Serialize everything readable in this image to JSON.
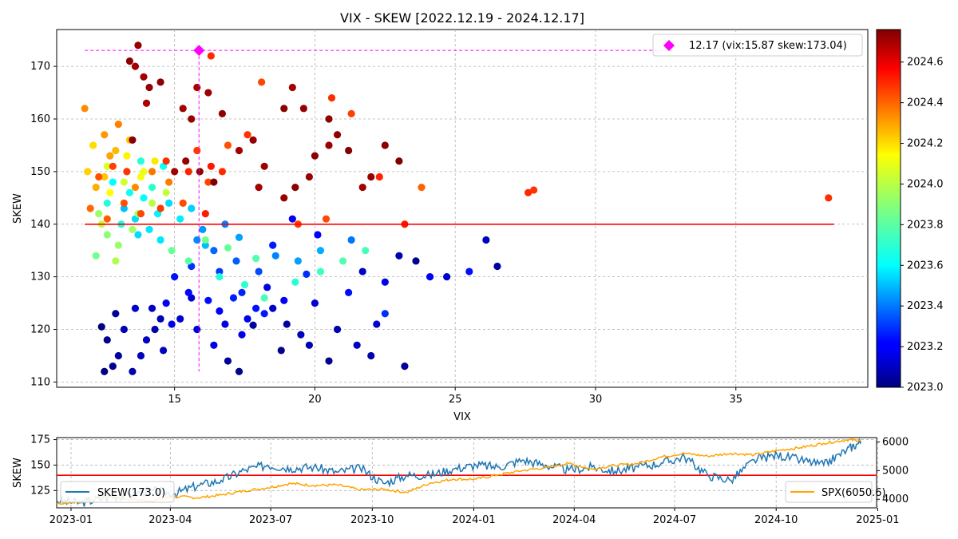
{
  "chart_data": [
    {
      "type": "scatter",
      "title": "VIX - SKEW [2022.12.19 - 2024.12.17]",
      "xlabel": "VIX",
      "ylabel": "SKEW",
      "xlim": [
        10.8,
        39.7
      ],
      "ylim": [
        109,
        177
      ],
      "xticks": [
        15,
        20,
        25,
        30,
        35
      ],
      "yticks": [
        110,
        120,
        130,
        140,
        150,
        160,
        170
      ],
      "grid": true,
      "colormap": "jet",
      "colorbar": {
        "range": [
          2023.0,
          2024.76
        ],
        "ticks": [
          "2023.0",
          "2023.2",
          "2023.4",
          "2023.6",
          "2023.8",
          "2024.0",
          "2024.2",
          "2024.4",
          "2024.6"
        ]
      },
      "mean_line": {
        "y": 140,
        "x_start": 11.8,
        "x_end": 38.5,
        "color": "#ff0000"
      },
      "highlight": {
        "label": "12.17 (vix:15.87 skew:173.04)",
        "x": 15.87,
        "y": 173.04,
        "color": "#ff00ff",
        "vline_ymin": 112,
        "hline_xmax": 32.5
      },
      "legend_position": "top-right",
      "points": [
        [
          12.4,
          120.5,
          2023.0
        ],
        [
          12.6,
          118,
          2023.02
        ],
        [
          13.0,
          115,
          2023.05
        ],
        [
          12.8,
          113,
          2023.03
        ],
        [
          12.5,
          112,
          2023.0
        ],
        [
          13.5,
          112,
          2023.07
        ],
        [
          13.8,
          115,
          2023.1
        ],
        [
          14.0,
          118,
          2023.12
        ],
        [
          14.3,
          120,
          2023.08
        ],
        [
          14.5,
          122,
          2023.1
        ],
        [
          14.2,
          124,
          2023.12
        ],
        [
          13.6,
          124,
          2023.13
        ],
        [
          15.8,
          120,
          2023.15
        ],
        [
          16.4,
          117,
          2023.17
        ],
        [
          15.2,
          122,
          2023.14
        ],
        [
          16.8,
          121,
          2023.16
        ],
        [
          17.4,
          119,
          2023.18
        ],
        [
          17.6,
          122,
          2023.2
        ],
        [
          13.2,
          120,
          2023.09
        ],
        [
          12.9,
          123,
          2023.04
        ],
        [
          14.6,
          116,
          2023.11
        ],
        [
          15.6,
          126,
          2023.15
        ],
        [
          14.7,
          125,
          2023.2
        ],
        [
          16.6,
          123.5,
          2023.22
        ],
        [
          17.9,
          124,
          2023.25
        ],
        [
          17.1,
          126,
          2023.27
        ],
        [
          16.2,
          125.5,
          2023.24
        ],
        [
          15.5,
          127,
          2023.23
        ],
        [
          14.9,
          121,
          2023.19
        ],
        [
          18.2,
          123,
          2023.26
        ],
        [
          19.0,
          121,
          2023.06
        ],
        [
          18.5,
          124,
          2023.12
        ],
        [
          20.0,
          125,
          2023.15
        ],
        [
          21.2,
          127,
          2023.24
        ],
        [
          22.5,
          123,
          2023.3
        ],
        [
          18.9,
          125.5,
          2023.21
        ],
        [
          17.8,
          120.8,
          2023.05
        ],
        [
          19.5,
          119,
          2023.1
        ],
        [
          20.8,
          120,
          2023.08
        ],
        [
          21.5,
          117,
          2023.11
        ],
        [
          22.2,
          121,
          2023.14
        ],
        [
          23.2,
          113,
          2023.05
        ],
        [
          22.0,
          115,
          2023.07
        ],
        [
          20.5,
          114,
          2023.03
        ],
        [
          19.8,
          117,
          2023.09
        ],
        [
          18.8,
          116,
          2023.02
        ],
        [
          16.9,
          114,
          2023.04
        ],
        [
          17.3,
          112,
          2023.02
        ],
        [
          15.0,
          130,
          2023.25
        ],
        [
          15.6,
          132,
          2023.3
        ],
        [
          16.6,
          131,
          2023.32
        ],
        [
          17.2,
          133,
          2023.38
        ],
        [
          18.0,
          131,
          2023.35
        ],
        [
          18.6,
          134,
          2023.45
        ],
        [
          19.4,
          133,
          2023.5
        ],
        [
          20.2,
          135,
          2023.52
        ],
        [
          21.3,
          137,
          2023.42
        ],
        [
          19.7,
          130.5,
          2023.3
        ],
        [
          18.3,
          128,
          2023.18
        ],
        [
          17.4,
          127,
          2023.28
        ],
        [
          16.4,
          135,
          2023.4
        ],
        [
          15.8,
          137,
          2023.46
        ],
        [
          16.0,
          139,
          2023.48
        ],
        [
          16.8,
          140,
          2023.44
        ],
        [
          17.3,
          137.5,
          2023.5
        ],
        [
          16.1,
          136,
          2023.55
        ],
        [
          13.2,
          143,
          2023.55
        ],
        [
          13.6,
          141,
          2023.6
        ],
        [
          14.1,
          139,
          2023.62
        ],
        [
          14.4,
          142,
          2023.64
        ],
        [
          13.9,
          145,
          2023.66
        ],
        [
          13.4,
          146,
          2023.68
        ],
        [
          14.8,
          144,
          2023.6
        ],
        [
          15.2,
          141,
          2023.63
        ],
        [
          15.6,
          143,
          2023.58
        ],
        [
          13.7,
          138,
          2023.6
        ],
        [
          14.5,
          137,
          2023.62
        ],
        [
          13.1,
          140,
          2023.7
        ],
        [
          12.8,
          148,
          2023.66
        ],
        [
          13.3,
          150,
          2023.7
        ],
        [
          13.8,
          152,
          2023.72
        ],
        [
          14.6,
          151,
          2023.68
        ],
        [
          12.6,
          144,
          2023.72
        ],
        [
          14.2,
          147,
          2023.74
        ],
        [
          16.6,
          130,
          2023.72
        ],
        [
          17.5,
          128.5,
          2023.75
        ],
        [
          18.2,
          126,
          2023.78
        ],
        [
          19.3,
          129,
          2023.73
        ],
        [
          20.2,
          131,
          2023.76
        ],
        [
          21.0,
          133,
          2023.8
        ],
        [
          21.8,
          135,
          2023.78
        ],
        [
          17.9,
          133.5,
          2023.8
        ],
        [
          16.9,
          135.5,
          2023.84
        ],
        [
          16.1,
          137,
          2023.86
        ],
        [
          15.5,
          133,
          2023.82
        ],
        [
          14.9,
          135,
          2023.84
        ],
        [
          12.2,
          134,
          2023.86
        ],
        [
          12.6,
          138,
          2023.9
        ],
        [
          13.0,
          136,
          2023.92
        ],
        [
          13.5,
          139,
          2023.94
        ],
        [
          12.9,
          133,
          2023.96
        ],
        [
          12.4,
          140,
          2023.98
        ],
        [
          13.7,
          142,
          2023.95
        ],
        [
          14.2,
          144,
          2023.98
        ],
        [
          14.7,
          146,
          2024.0
        ],
        [
          13.2,
          148,
          2024.02
        ],
        [
          12.6,
          151,
          2024.04
        ],
        [
          13.9,
          150,
          2024.06
        ],
        [
          12.3,
          142,
          2023.92
        ],
        [
          12.7,
          146,
          2024.1
        ],
        [
          13.3,
          153,
          2024.12
        ],
        [
          13.8,
          149,
          2024.08
        ],
        [
          14.3,
          152,
          2024.14
        ],
        [
          12.1,
          155,
          2024.16
        ],
        [
          11.9,
          150,
          2024.18
        ],
        [
          12.5,
          149,
          2024.2
        ],
        [
          12.9,
          154,
          2024.22
        ],
        [
          13.4,
          156,
          2024.2
        ],
        [
          12.2,
          147,
          2024.24
        ],
        [
          12.7,
          153,
          2024.26
        ],
        [
          11.8,
          162,
          2024.3
        ],
        [
          12.5,
          157,
          2024.28
        ],
        [
          13.0,
          159,
          2024.32
        ],
        [
          13.6,
          147,
          2024.3
        ],
        [
          14.2,
          150,
          2024.34
        ],
        [
          14.8,
          148,
          2024.33
        ],
        [
          12.0,
          143,
          2024.36
        ],
        [
          12.6,
          141,
          2024.38
        ],
        [
          13.2,
          144,
          2024.4
        ],
        [
          13.8,
          142,
          2024.42
        ],
        [
          14.5,
          143,
          2024.44
        ],
        [
          15.3,
          144,
          2024.41
        ],
        [
          12.3,
          149,
          2024.4
        ],
        [
          12.8,
          151,
          2024.43
        ],
        [
          13.3,
          150,
          2024.45
        ],
        [
          14.7,
          152,
          2024.46
        ],
        [
          15.5,
          150,
          2024.48
        ],
        [
          16.3,
          151,
          2024.5
        ],
        [
          15.8,
          154,
          2024.44
        ],
        [
          16.2,
          148,
          2024.42
        ],
        [
          16.7,
          150,
          2024.47
        ],
        [
          16.9,
          155,
          2024.4
        ],
        [
          17.6,
          157,
          2024.45
        ],
        [
          18.1,
          167,
          2024.42
        ],
        [
          19.4,
          140,
          2024.44
        ],
        [
          20.4,
          141,
          2024.41
        ],
        [
          20.6,
          164,
          2024.46
        ],
        [
          21.3,
          161,
          2024.43
        ],
        [
          22.3,
          149,
          2024.48
        ],
        [
          23.2,
          140,
          2024.5
        ],
        [
          23.8,
          147,
          2024.37
        ],
        [
          27.6,
          146,
          2024.47
        ],
        [
          27.8,
          146.5,
          2024.45
        ],
        [
          38.3,
          145,
          2024.46
        ],
        [
          16.3,
          172,
          2024.47
        ],
        [
          16.1,
          142,
          2024.49
        ],
        [
          13.6,
          170,
          2024.7
        ],
        [
          13.7,
          174,
          2024.72
        ],
        [
          13.4,
          171,
          2024.74
        ],
        [
          13.9,
          168,
          2024.7
        ],
        [
          14.1,
          166,
          2024.72
        ],
        [
          14.5,
          167,
          2024.74
        ],
        [
          14.0,
          163,
          2024.68
        ],
        [
          15.3,
          162,
          2024.7
        ],
        [
          15.6,
          160,
          2024.72
        ],
        [
          15.8,
          166,
          2024.69
        ],
        [
          16.2,
          165,
          2024.71
        ],
        [
          16.7,
          161,
          2024.73
        ],
        [
          15.0,
          150,
          2024.7
        ],
        [
          15.4,
          152,
          2024.72
        ],
        [
          15.9,
          150,
          2024.74
        ],
        [
          16.4,
          148,
          2024.76
        ],
        [
          17.3,
          154,
          2024.7
        ],
        [
          17.8,
          156,
          2024.73
        ],
        [
          18.2,
          151,
          2024.71
        ],
        [
          18.9,
          162,
          2024.74
        ],
        [
          19.2,
          166,
          2024.7
        ],
        [
          19.6,
          162,
          2024.72
        ],
        [
          20.0,
          153,
          2024.74
        ],
        [
          20.5,
          155,
          2024.71
        ],
        [
          20.8,
          157,
          2024.73
        ],
        [
          21.2,
          154,
          2024.75
        ],
        [
          21.7,
          147,
          2024.7
        ],
        [
          22.0,
          149,
          2024.72
        ],
        [
          22.5,
          155,
          2024.74
        ],
        [
          23.0,
          152,
          2024.76
        ],
        [
          18.0,
          147,
          2024.7
        ],
        [
          18.9,
          145,
          2024.72
        ],
        [
          19.3,
          147,
          2024.74
        ],
        [
          19.8,
          149,
          2024.71
        ],
        [
          20.5,
          160,
          2024.73
        ],
        [
          13.5,
          156,
          2024.75
        ],
        [
          25.5,
          131,
          2023.24
        ],
        [
          24.1,
          130,
          2023.2
        ],
        [
          26.1,
          137,
          2023.1
        ],
        [
          26.5,
          132,
          2023.06
        ],
        [
          23.0,
          134,
          2023.08
        ],
        [
          21.7,
          131,
          2023.12
        ],
        [
          24.7,
          130,
          2023.14
        ],
        [
          23.6,
          133,
          2023.03
        ],
        [
          22.5,
          129,
          2023.18
        ],
        [
          20.1,
          138,
          2023.22
        ],
        [
          19.2,
          141,
          2023.2
        ],
        [
          18.5,
          136,
          2023.26
        ]
      ]
    },
    {
      "type": "line",
      "ylabel": "SKEW",
      "ylim": [
        108,
        177
      ],
      "yticks": [
        125,
        150,
        175
      ],
      "y2lim": [
        3700,
        6150
      ],
      "y2ticks": [
        4000,
        5000,
        6000
      ],
      "xlim": [
        "2022-12-19",
        "2024-12-31"
      ],
      "xticks": [
        "2023-01",
        "2023-04",
        "2023-07",
        "2023-10",
        "2024-01",
        "2024-04",
        "2024-07",
        "2024-10",
        "2025-01"
      ],
      "grid": true,
      "mean_line": {
        "y": 140,
        "color": "#ff0000"
      },
      "series": [
        {
          "name": "SKEW(173.0)",
          "axis": "left",
          "color": "#1f77b4",
          "x": [
            "2022-12-19",
            "2023-01-10",
            "2023-02-01",
            "2023-02-22",
            "2023-03-15",
            "2023-04-05",
            "2023-04-26",
            "2023-05-17",
            "2023-06-07",
            "2023-06-28",
            "2023-07-19",
            "2023-08-09",
            "2023-08-30",
            "2023-09-20",
            "2023-10-11",
            "2023-11-01",
            "2023-11-22",
            "2023-12-13",
            "2024-01-03",
            "2024-01-24",
            "2024-02-14",
            "2024-03-06",
            "2024-03-27",
            "2024-04-17",
            "2024-05-08",
            "2024-05-29",
            "2024-06-19",
            "2024-07-10",
            "2024-07-31",
            "2024-08-21",
            "2024-09-11",
            "2024-10-02",
            "2024-10-23",
            "2024-11-13",
            "2024-12-04",
            "2024-12-17"
          ],
          "values": [
            115,
            113,
            118,
            121,
            125,
            122,
            130,
            135,
            145,
            150,
            147,
            148,
            143,
            147,
            132,
            140,
            140,
            146,
            150,
            148,
            155,
            150,
            145,
            148,
            144,
            148,
            152,
            158,
            140,
            135,
            155,
            160,
            155,
            150,
            165,
            173
          ]
        },
        {
          "name": "SPX(6050.6)",
          "axis": "right",
          "color": "#ffa500",
          "x": [
            "2022-12-19",
            "2023-01-10",
            "2023-02-01",
            "2023-02-22",
            "2023-03-15",
            "2023-04-05",
            "2023-04-26",
            "2023-05-17",
            "2023-06-07",
            "2023-06-28",
            "2023-07-19",
            "2023-08-09",
            "2023-08-30",
            "2023-09-20",
            "2023-10-11",
            "2023-11-01",
            "2023-11-22",
            "2023-12-13",
            "2024-01-03",
            "2024-01-24",
            "2024-02-14",
            "2024-03-06",
            "2024-03-27",
            "2024-04-17",
            "2024-05-08",
            "2024-05-29",
            "2024-06-19",
            "2024-07-10",
            "2024-07-31",
            "2024-08-21",
            "2024-09-11",
            "2024-10-02",
            "2024-10-23",
            "2024-11-13",
            "2024-12-04",
            "2024-12-17"
          ],
          "values": [
            3850,
            3900,
            4120,
            4000,
            3950,
            4100,
            4050,
            4150,
            4290,
            4400,
            4550,
            4480,
            4500,
            4330,
            4350,
            4240,
            4560,
            4700,
            4700,
            4860,
            5000,
            5100,
            5250,
            5050,
            5180,
            5250,
            5480,
            5600,
            5500,
            5600,
            5550,
            5700,
            5800,
            5950,
            6070,
            6050.6
          ]
        }
      ],
      "legend_left_position": "bottom-left",
      "legend_right_position": "bottom-right"
    }
  ]
}
